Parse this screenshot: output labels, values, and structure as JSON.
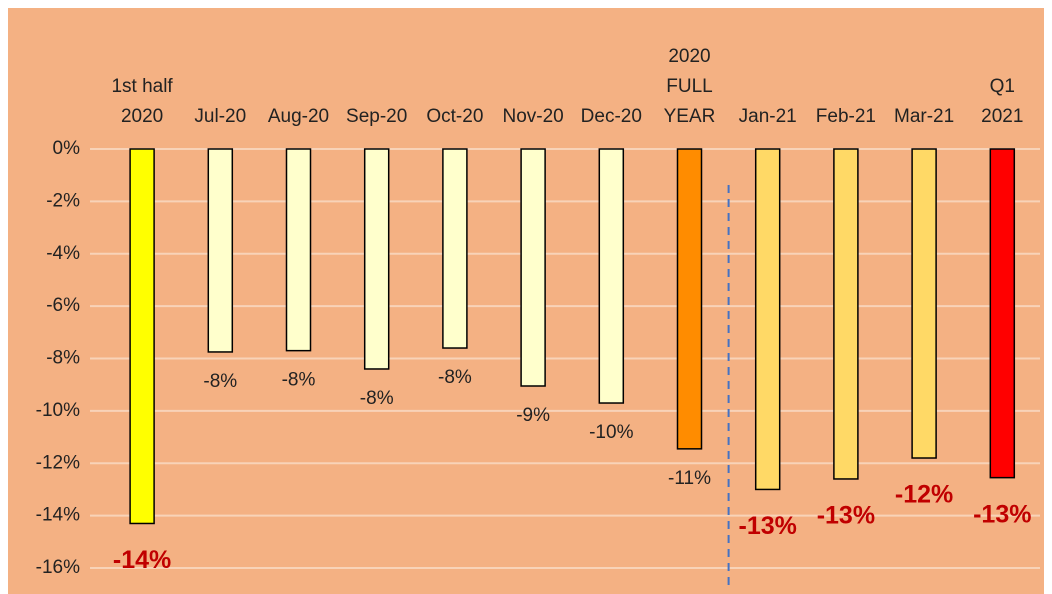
{
  "chart_data": {
    "type": "bar",
    "categories": [
      "1st half\n2020",
      "Jul-20",
      "Aug-20",
      "Sep-20",
      "Oct-20",
      "Nov-20",
      "Dec-20",
      "2020\nFULL\nYEAR",
      "Jan-21",
      "Feb-21",
      "Mar-21",
      "Q1\n2021"
    ],
    "values": [
      -14.3,
      -7.75,
      -7.7,
      -8.4,
      -7.6,
      -9.05,
      -9.7,
      -11.45,
      -13.0,
      -12.6,
      -11.8,
      -12.55
    ],
    "value_labels": [
      "-14%",
      "-8%",
      "-8%",
      "-8%",
      "-8%",
      "-9%",
      "-10%",
      "-11%",
      "-13%",
      "-13%",
      "-12%",
      "-13%"
    ],
    "colors": [
      "#ffff00",
      "#ffffcc",
      "#ffffcc",
      "#ffffcc",
      "#ffffcc",
      "#ffffcc",
      "#ffffcc",
      "#ff8c00",
      "#ffd966",
      "#ffd966",
      "#ffd966",
      "#ff0000"
    ],
    "label_styles": [
      "bold",
      "normal",
      "normal",
      "normal",
      "normal",
      "normal",
      "normal",
      "normal",
      "bold",
      "bold",
      "bold",
      "bold"
    ],
    "ylim": [
      -16,
      0
    ],
    "yticks": [
      {
        "value": 0,
        "label": "0%"
      },
      {
        "value": -2,
        "label": "-2%"
      },
      {
        "value": -4,
        "label": "-4%"
      },
      {
        "value": -6,
        "label": "-6%"
      },
      {
        "value": -8,
        "label": "-8%"
      },
      {
        "value": -10,
        "label": "-10%"
      },
      {
        "value": -12,
        "label": "-12%"
      },
      {
        "value": -14,
        "label": "-14%"
      },
      {
        "value": -16,
        "label": "-16%"
      }
    ],
    "grid": true
  }
}
